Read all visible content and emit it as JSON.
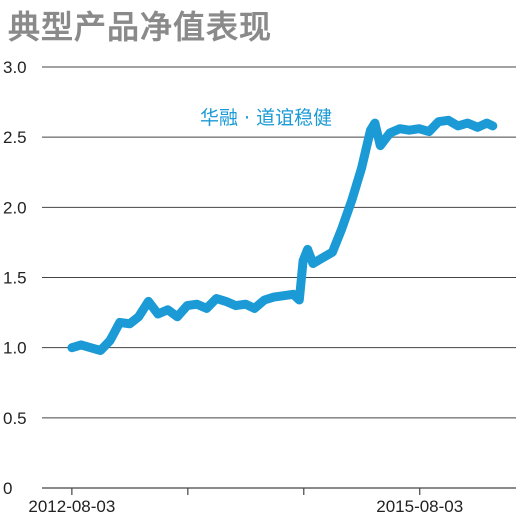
{
  "chart_data": {
    "type": "line",
    "title": "典型产品净值表现",
    "series": [
      {
        "name": "华融 · 道谊稳健",
        "color": "#1b9ad6",
        "points": [
          [
            "2012-08-03",
            1.0
          ],
          [
            "2012-09-01",
            1.02
          ],
          [
            "2012-10-01",
            1.0
          ],
          [
            "2012-11-01",
            0.98
          ],
          [
            "2012-12-01",
            1.05
          ],
          [
            "2013-01-01",
            1.18
          ],
          [
            "2013-02-01",
            1.17
          ],
          [
            "2013-03-01",
            1.22
          ],
          [
            "2013-04-01",
            1.33
          ],
          [
            "2013-05-01",
            1.24
          ],
          [
            "2013-06-01",
            1.27
          ],
          [
            "2013-07-01",
            1.22
          ],
          [
            "2013-08-01",
            1.3
          ],
          [
            "2013-09-01",
            1.31
          ],
          [
            "2013-10-01",
            1.28
          ],
          [
            "2013-11-01",
            1.35
          ],
          [
            "2013-12-01",
            1.33
          ],
          [
            "2014-01-01",
            1.3
          ],
          [
            "2014-02-01",
            1.31
          ],
          [
            "2014-03-01",
            1.28
          ],
          [
            "2014-04-01",
            1.34
          ],
          [
            "2014-05-01",
            1.36
          ],
          [
            "2014-06-01",
            1.37
          ],
          [
            "2014-07-01",
            1.38
          ],
          [
            "2014-07-20",
            1.34
          ],
          [
            "2014-08-01",
            1.62
          ],
          [
            "2014-08-15",
            1.7
          ],
          [
            "2014-09-01",
            1.6
          ],
          [
            "2014-10-01",
            1.64
          ],
          [
            "2014-11-01",
            1.68
          ],
          [
            "2014-12-01",
            1.85
          ],
          [
            "2015-01-01",
            2.05
          ],
          [
            "2015-02-01",
            2.28
          ],
          [
            "2015-03-01",
            2.55
          ],
          [
            "2015-03-15",
            2.6
          ],
          [
            "2015-04-01",
            2.44
          ],
          [
            "2015-05-01",
            2.53
          ],
          [
            "2015-06-01",
            2.56
          ],
          [
            "2015-07-01",
            2.55
          ],
          [
            "2015-08-01",
            2.56
          ],
          [
            "2015-09-01",
            2.54
          ],
          [
            "2015-10-01",
            2.61
          ],
          [
            "2015-11-01",
            2.62
          ],
          [
            "2015-12-01",
            2.58
          ],
          [
            "2016-01-01",
            2.6
          ],
          [
            "2016-02-01",
            2.57
          ],
          [
            "2016-03-01",
            2.6
          ],
          [
            "2016-03-20",
            2.58
          ]
        ]
      }
    ],
    "ylim": [
      0,
      3.0
    ],
    "y_ticks": [
      "0",
      "0.5",
      "1.0",
      "1.5",
      "2.0",
      "2.5",
      "3.0"
    ],
    "xlim": [
      "2012-05-01",
      "2016-06-01"
    ],
    "x_tick_labels": [
      {
        "date": "2012-08-03",
        "label": "2012-08-03"
      },
      {
        "date": "2013-08-03",
        "label": ""
      },
      {
        "date": "2014-08-03",
        "label": ""
      },
      {
        "date": "2015-08-03",
        "label": "2015-08-03"
      }
    ],
    "grid": "horizontal",
    "xlabel": "",
    "ylabel": ""
  }
}
